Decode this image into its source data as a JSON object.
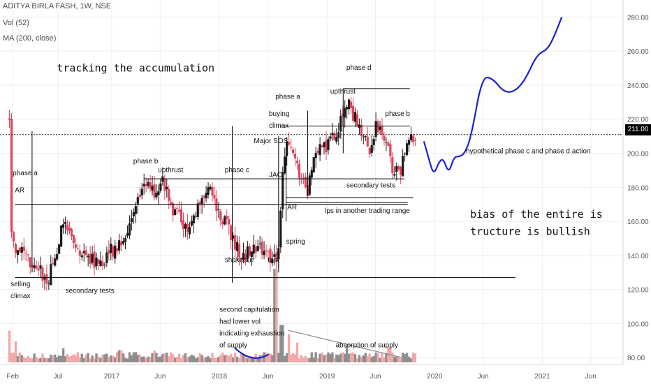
{
  "legend": {
    "symbol": "ADITYA BIRLA FASH, 1W, NSE",
    "volume": "Vol (52)",
    "ma": "MA (200, close)"
  },
  "last_price": "211.00",
  "colors": {
    "up": "#1a1a1a",
    "down": "#e0455b",
    "vol_up": "#8f8f8f",
    "vol_down": "#f2a9a9",
    "projection": "#1a22d4",
    "volume_curve": "#1a22d4",
    "levels": "#000000",
    "grid": "#eeeeee"
  },
  "chart_data": {
    "type": "candlestick",
    "title": "ADITYA BIRLA FASH, 1W, NSE",
    "x_ticks": [
      "Feb",
      "Jul",
      "2017",
      "Jun",
      "2018",
      "Jun",
      "2019",
      "Jun",
      "2020",
      "Jun",
      "2021",
      "Jun"
    ],
    "y_ticks": [
      80,
      100,
      120,
      140,
      160,
      180,
      200,
      220,
      240,
      260,
      280
    ],
    "ylim": [
      76,
      290
    ],
    "xlim": [
      2016.04,
      2021.75
    ],
    "grid": true,
    "price_path": [
      [
        2016.05,
        222
      ],
      [
        2016.07,
        148
      ],
      [
        2016.11,
        142
      ],
      [
        2016.2,
        140
      ],
      [
        2016.3,
        132
      ],
      [
        2016.4,
        126
      ],
      [
        2016.5,
        140
      ],
      [
        2016.55,
        162
      ],
      [
        2016.65,
        150
      ],
      [
        2016.72,
        142
      ],
      [
        2016.8,
        138
      ],
      [
        2016.9,
        133
      ],
      [
        2016.95,
        140
      ],
      [
        2017.05,
        146
      ],
      [
        2017.15,
        155
      ],
      [
        2017.22,
        165
      ],
      [
        2017.3,
        184
      ],
      [
        2017.4,
        176
      ],
      [
        2017.48,
        185
      ],
      [
        2017.55,
        168
      ],
      [
        2017.65,
        162
      ],
      [
        2017.7,
        152
      ],
      [
        2017.8,
        170
      ],
      [
        2017.9,
        180
      ],
      [
        2017.95,
        170
      ],
      [
        2018.05,
        160
      ],
      [
        2018.12,
        150
      ],
      [
        2018.2,
        140
      ],
      [
        2018.3,
        142
      ],
      [
        2018.4,
        145
      ],
      [
        2018.45,
        140
      ],
      [
        2018.52,
        137
      ],
      [
        2018.56,
        145
      ],
      [
        2018.58,
        185
      ],
      [
        2018.62,
        205
      ],
      [
        2018.68,
        200
      ],
      [
        2018.75,
        185
      ],
      [
        2018.82,
        178
      ],
      [
        2018.9,
        200
      ],
      [
        2019.0,
        205
      ],
      [
        2019.1,
        215
      ],
      [
        2019.2,
        228
      ],
      [
        2019.25,
        222
      ],
      [
        2019.32,
        213
      ],
      [
        2019.4,
        200
      ],
      [
        2019.45,
        216
      ],
      [
        2019.55,
        205
      ],
      [
        2019.62,
        188
      ],
      [
        2019.68,
        190
      ],
      [
        2019.75,
        205
      ],
      [
        2019.82,
        211
      ]
    ],
    "volume": {
      "ylim": [
        0,
        200
      ],
      "spikes": [
        [
          2016.05,
          68
        ],
        [
          2016.11,
          45
        ],
        [
          2016.55,
          30
        ],
        [
          2017.08,
          26
        ],
        [
          2017.4,
          25
        ],
        [
          2018.4,
          16
        ],
        [
          2018.52,
          200
        ],
        [
          2018.58,
          80
        ],
        [
          2018.64,
          60
        ],
        [
          2018.72,
          42
        ],
        [
          2019.18,
          35
        ],
        [
          2019.58,
          32
        ]
      ]
    },
    "horizontal_levels": [
      [
        2016.1,
        2019.75,
        170
      ],
      [
        2016.1,
        2020.75,
        127
      ],
      [
        2017.3,
        2019.72,
        185
      ],
      [
        2018.57,
        2019.77,
        216
      ],
      [
        2019.15,
        2019.77,
        238
      ],
      [
        2018.62,
        2019.8,
        174
      ],
      [
        2018.62,
        2019.75,
        171
      ]
    ],
    "vertical_markers": [
      [
        2016.26,
        130,
        213
      ],
      [
        2018.12,
        124,
        216
      ],
      [
        2018.55,
        130,
        210
      ],
      [
        2018.62,
        160,
        200
      ],
      [
        2018.82,
        175,
        225
      ],
      [
        2019.15,
        200,
        238
      ]
    ],
    "projection": [
      [
        2019.9,
        207
      ],
      [
        2019.94,
        198
      ],
      [
        2019.99,
        187
      ],
      [
        2020.04,
        195
      ],
      [
        2020.08,
        197
      ],
      [
        2020.13,
        188
      ],
      [
        2020.18,
        198
      ],
      [
        2020.23,
        198
      ],
      [
        2020.28,
        200
      ],
      [
        2020.34,
        210
      ],
      [
        2020.44,
        245
      ],
      [
        2020.54,
        244
      ],
      [
        2020.64,
        236
      ],
      [
        2020.74,
        236
      ],
      [
        2020.84,
        243
      ],
      [
        2020.95,
        258
      ],
      [
        2021.05,
        261
      ],
      [
        2021.12,
        270
      ],
      [
        2021.18,
        280
      ]
    ],
    "volume_curve": [
      [
        2018.14,
        86
      ],
      [
        2018.2,
        83
      ],
      [
        2018.3,
        82
      ],
      [
        2018.4,
        82
      ],
      [
        2018.46,
        82
      ]
    ],
    "volume_trend": [
      [
        2018.64,
        96
      ],
      [
        2019.7,
        80
      ]
    ],
    "annotations": [
      {
        "text": "tracking the accumulation",
        "x": 2016.49,
        "y": 248,
        "size": 15
      },
      {
        "text": "phase a",
        "x": 2016.08,
        "y": 187,
        "size": 10
      },
      {
        "text": "AR",
        "x": 2016.1,
        "y": 177,
        "size": 10
      },
      {
        "text": "selling",
        "x": 2016.06,
        "y": 122,
        "size": 10
      },
      {
        "text": "climax",
        "x": 2016.06,
        "y": 115,
        "size": 10
      },
      {
        "text": "secondary tests",
        "x": 2016.57,
        "y": 118,
        "size": 10
      },
      {
        "text": "phase b",
        "x": 2017.2,
        "y": 194,
        "size": 10
      },
      {
        "text": "upthrust",
        "x": 2017.43,
        "y": 189,
        "size": 10
      },
      {
        "text": "phase c",
        "x": 2018.05,
        "y": 189,
        "size": 10
      },
      {
        "text": "shakeout",
        "x": 2018.05,
        "y": 136,
        "size": 10
      },
      {
        "text": "test",
        "x": 2018.45,
        "y": 136,
        "size": 10
      },
      {
        "text": "spring",
        "x": 2018.62,
        "y": 147,
        "size": 10
      },
      {
        "text": "second capitulation",
        "x": 2018.0,
        "y": 107,
        "size": 10
      },
      {
        "text": "had lower vol",
        "x": 2018.0,
        "y": 100,
        "size": 10
      },
      {
        "text": "indicating exhaustion",
        "x": 2018.0,
        "y": 93,
        "size": 10
      },
      {
        "text": "of supply",
        "x": 2018.0,
        "y": 86,
        "size": 10
      },
      {
        "text": "Major SOS",
        "x": 2018.32,
        "y": 206,
        "size": 10
      },
      {
        "text": "JAC",
        "x": 2018.46,
        "y": 186,
        "size": 10
      },
      {
        "text": "AR",
        "x": 2018.63,
        "y": 167,
        "size": 10
      },
      {
        "text": "phase a",
        "x": 2018.52,
        "y": 232,
        "size": 10
      },
      {
        "text": "buying",
        "x": 2018.46,
        "y": 222,
        "size": 10
      },
      {
        "text": "climax",
        "x": 2018.46,
        "y": 215,
        "size": 10
      },
      {
        "text": "upthrust",
        "x": 2019.03,
        "y": 235,
        "size": 10
      },
      {
        "text": "phase d",
        "x": 2019.18,
        "y": 249,
        "size": 10
      },
      {
        "text": "phase b",
        "x": 2019.54,
        "y": 222,
        "size": 10
      },
      {
        "text": "secondary tests",
        "x": 2019.18,
        "y": 180,
        "size": 10
      },
      {
        "text": "lps in another trading range",
        "x": 2018.98,
        "y": 165,
        "size": 10
      },
      {
        "text": "absorption of supply",
        "x": 2019.08,
        "y": 86,
        "size": 10
      },
      {
        "text": "hypothetical phase c and phase d action",
        "x": 2020.29,
        "y": 200,
        "size": 10
      },
      {
        "text": "bias of the entire is",
        "x": 2020.33,
        "y": 162,
        "size": 15
      },
      {
        "text": "tructure is bullish",
        "x": 2020.33,
        "y": 152,
        "size": 15
      }
    ]
  }
}
